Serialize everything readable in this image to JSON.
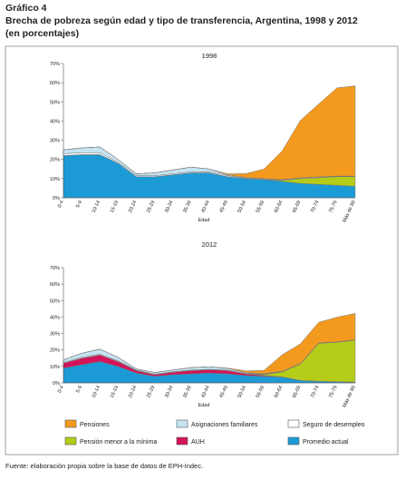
{
  "header": {
    "label": "Gráfico 4",
    "title": "Brecha de pobreza según edad y tipo de transferencia, Argentina, 1998 y 2012",
    "subtitle": "(en porcentajes)"
  },
  "source": "Fuente: elaboración propia sobre la base de datos de EPH-Indec.",
  "chart_data": [
    {
      "type": "area",
      "stacked": true,
      "title": "1998",
      "x_label": "Edad",
      "categories": [
        "0-4",
        "5-9",
        "10-14",
        "15-19",
        "20-24",
        "25-29",
        "30-34",
        "35-39",
        "40-44",
        "45-49",
        "50-54",
        "55-59",
        "60-64",
        "65-69",
        "70-74",
        "75-79",
        "Más de 80"
      ],
      "ylim": [
        0,
        70
      ],
      "yticks": [
        {
          "value": 0,
          "label": "0%"
        },
        {
          "value": 10,
          "label": "10%"
        },
        {
          "value": 20,
          "label": "20%"
        },
        {
          "value": 30,
          "label": "30%"
        },
        {
          "value": 40,
          "label": "40%"
        },
        {
          "value": 50,
          "label": "50%"
        },
        {
          "value": 60,
          "label": "60%"
        },
        {
          "value": 70,
          "label": "70%"
        }
      ],
      "series": [
        {
          "name": "Promedio actual",
          "color": "#1b9ad6",
          "values": [
            22,
            22.5,
            22.5,
            18,
            11,
            11,
            12,
            13,
            13,
            11,
            10,
            9.5,
            8.5,
            7.5,
            7,
            6.5,
            6
          ]
        },
        {
          "name": "Pensión menor a la mínima",
          "color": "#b5cc18",
          "values": [
            0,
            0,
            0,
            0,
            0,
            0,
            0,
            0,
            0,
            0,
            0,
            0,
            0.5,
            2.5,
            3.5,
            4.5,
            5
          ]
        },
        {
          "name": "Seguro de desempleo",
          "color": "#ffffff",
          "values": [
            1,
            1,
            1,
            0.5,
            0.5,
            0.5,
            0.5,
            0.5,
            0.5,
            0.5,
            0.3,
            0.3,
            0.3,
            0.3,
            0.3,
            0.2,
            0.2
          ]
        },
        {
          "name": "Asignaciones familiares",
          "color": "#c6e4f2",
          "values": [
            2,
            2.5,
            3,
            1.5,
            1,
            1.5,
            2,
            2.5,
            1.5,
            0.5,
            0.3,
            0.2,
            0.2,
            0.1,
            0.1,
            0.1,
            0.1
          ]
        },
        {
          "name": "Pensiones",
          "color": "#f39a1e",
          "values": [
            0,
            0,
            0,
            0,
            0,
            0,
            0,
            0,
            0,
            0.5,
            2,
            5,
            15,
            30,
            38,
            46,
            47
          ]
        }
      ]
    },
    {
      "type": "area",
      "stacked": true,
      "title": "2012",
      "x_label": "Edad",
      "categories": [
        "0-4",
        "5-9",
        "10-14",
        "15-19",
        "20-24",
        "25-29",
        "30-34",
        "35-39",
        "40-44",
        "45-49",
        "50-54",
        "55-59",
        "60-64",
        "65-69",
        "70-74",
        "75-79",
        "Más de 80"
      ],
      "ylim": [
        0,
        70
      ],
      "yticks": [
        {
          "value": 0,
          "label": "0%"
        },
        {
          "value": 10,
          "label": "10%"
        },
        {
          "value": 20,
          "label": "20%"
        },
        {
          "value": 30,
          "label": "30%"
        },
        {
          "value": 40,
          "label": "40%"
        },
        {
          "value": 50,
          "label": "50%"
        },
        {
          "value": 60,
          "label": "60%"
        },
        {
          "value": 70,
          "label": "70%"
        }
      ],
      "series": [
        {
          "name": "Promedio actual",
          "color": "#1b9ad6",
          "values": [
            9,
            11,
            13,
            10,
            6,
            4,
            5,
            5.5,
            6,
            5.5,
            4.5,
            4,
            3.5,
            1.5,
            1,
            0.7,
            0.5
          ]
        },
        {
          "name": "AUH",
          "color": "#d4145a",
          "values": [
            3,
            4,
            4,
            3,
            1.5,
            1,
            1.5,
            2,
            2,
            2,
            1,
            0.5,
            0.2,
            0,
            0,
            0,
            0
          ]
        },
        {
          "name": "Pensión menor a la mínima",
          "color": "#b5cc18",
          "values": [
            0,
            0,
            0,
            0,
            0,
            0,
            0,
            0,
            0,
            0,
            0,
            0.5,
            3,
            10,
            23,
            24,
            25.5
          ]
        },
        {
          "name": "Seguro de desempleo",
          "color": "#ffffff",
          "values": [
            0.5,
            0.5,
            0.5,
            0.5,
            0.3,
            0.3,
            0.3,
            0.3,
            0.3,
            0.3,
            0.3,
            0.3,
            0.2,
            0.2,
            0.2,
            0.1,
            0.1
          ]
        },
        {
          "name": "Asignaciones familiares",
          "color": "#c6e4f2",
          "values": [
            1.5,
            2.5,
            3,
            2,
            0.7,
            1,
            1,
            1.5,
            1.5,
            1,
            0.5,
            0.3,
            0.2,
            0.1,
            0.1,
            0.1,
            0.1
          ]
        },
        {
          "name": "Pensiones",
          "color": "#f39a1e",
          "values": [
            0,
            0,
            0,
            0,
            0,
            0,
            0,
            0,
            0,
            0.2,
            1,
            2,
            10,
            12,
            12.5,
            15,
            16
          ]
        }
      ]
    }
  ]
}
